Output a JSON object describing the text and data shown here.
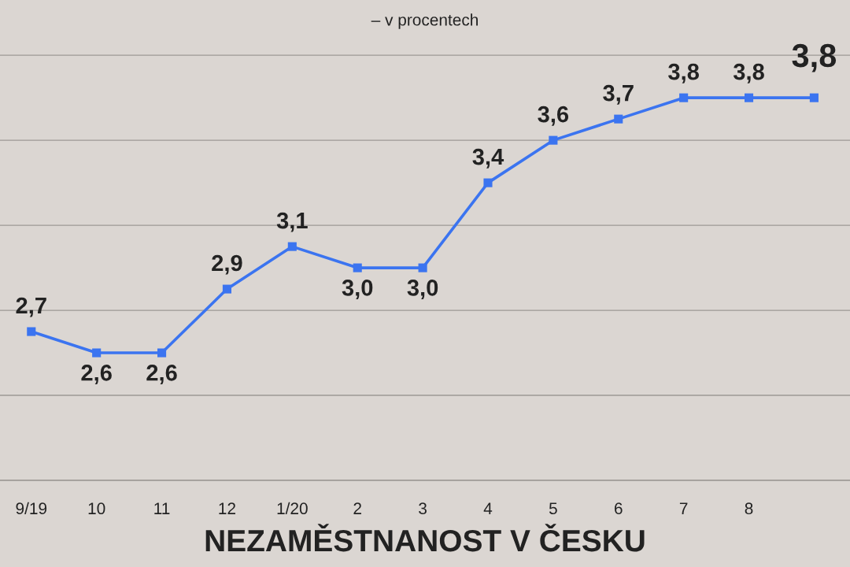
{
  "chart_data": {
    "type": "line",
    "subtitle": "– v procentech",
    "title": "NEZAMĚSTNANOST V ČESKU",
    "categories": [
      "9/19",
      "10",
      "11",
      "12",
      "1/20",
      "2",
      "3",
      "4",
      "5",
      "6",
      "7",
      "8",
      null
    ],
    "series": [
      {
        "color": "#3b74f0",
        "values": [
          2.7,
          2.6,
          2.6,
          2.9,
          3.1,
          3.0,
          3.0,
          3.4,
          3.6,
          3.7,
          3.8,
          3.8,
          3.8
        ],
        "value_labels": [
          "2,7",
          "2,6",
          "2,6",
          "2,9",
          "3,1",
          "3,0",
          "3,0",
          "3,4",
          "3,6",
          "3,7",
          "3,8",
          "3,8",
          "3,8"
        ]
      }
    ],
    "ylim": [
      2.0,
      4.26
    ],
    "yticks": [
      {
        "value": 2.0,
        "label": null
      },
      {
        "value": 2.4,
        "label": null
      },
      {
        "value": 2.8,
        "label": null
      },
      {
        "value": 3.2,
        "label": null
      },
      {
        "value": 3.6,
        "label": null
      },
      {
        "value": 4.0,
        "label": null
      }
    ],
    "grid": "y",
    "marker": "square",
    "line_style": "solid",
    "tick_labels": "x"
  }
}
